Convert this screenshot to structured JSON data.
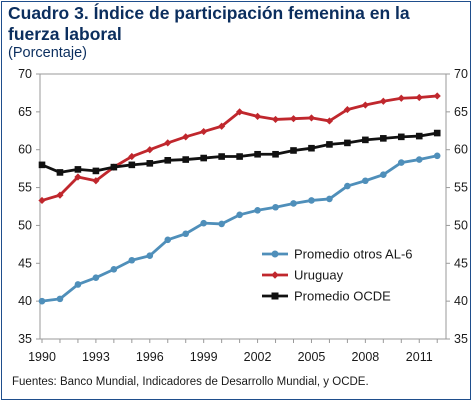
{
  "header": {
    "title": "Cuadro 3. Índice de participación femenina en la fuerza laboral",
    "subtitle": "(Porcentaje)"
  },
  "footer": {
    "source": "Fuentes: Banco Mundial, Indicadores de Desarrollo Mundial, y OCDE."
  },
  "chart_data": {
    "type": "line",
    "title": "Cuadro 3. Índice de participación femenina en la fuerza laboral",
    "subtitle": "(Porcentaje)",
    "xlabel": "",
    "ylabel": "",
    "x": [
      1990,
      1991,
      1992,
      1993,
      1994,
      1995,
      1996,
      1997,
      1998,
      1999,
      2000,
      2001,
      2002,
      2003,
      2004,
      2005,
      2006,
      2007,
      2008,
      2009,
      2010,
      2011,
      2012
    ],
    "x_ticks": [
      "1990",
      "1993",
      "1996",
      "1999",
      "2002",
      "2005",
      "2008",
      "2011"
    ],
    "ylim": [
      35,
      70
    ],
    "y_ticks": [
      "35",
      "40",
      "45",
      "50",
      "55",
      "60",
      "65",
      "70"
    ],
    "secondary_y_axis": true,
    "grid": false,
    "legend_position": "bottom-right",
    "series": [
      {
        "name": "Promedio otros AL-6",
        "color": "#4f8fba",
        "marker": "circle",
        "values": [
          40.0,
          40.3,
          42.2,
          43.1,
          44.2,
          45.4,
          46.0,
          48.1,
          48.9,
          50.3,
          50.2,
          51.4,
          52.0,
          52.4,
          52.9,
          53.3,
          53.5,
          55.2,
          55.9,
          56.7,
          58.3,
          58.7,
          59.2
        ]
      },
      {
        "name": "Uruguay",
        "color": "#c0272d",
        "marker": "diamond",
        "values": [
          53.3,
          54.0,
          56.4,
          55.9,
          57.7,
          59.1,
          60.0,
          60.9,
          61.7,
          62.4,
          63.1,
          65.0,
          64.4,
          64.0,
          64.1,
          64.2,
          63.8,
          65.3,
          65.9,
          66.4,
          66.8,
          66.9,
          67.1
        ]
      },
      {
        "name": "Promedio OCDE",
        "color": "#111111",
        "marker": "square",
        "values": [
          58.0,
          57.0,
          57.4,
          57.2,
          57.7,
          58.0,
          58.2,
          58.6,
          58.7,
          58.9,
          59.1,
          59.1,
          59.4,
          59.4,
          59.9,
          60.2,
          60.7,
          60.9,
          61.3,
          61.5,
          61.7,
          61.8,
          62.2
        ]
      }
    ]
  }
}
